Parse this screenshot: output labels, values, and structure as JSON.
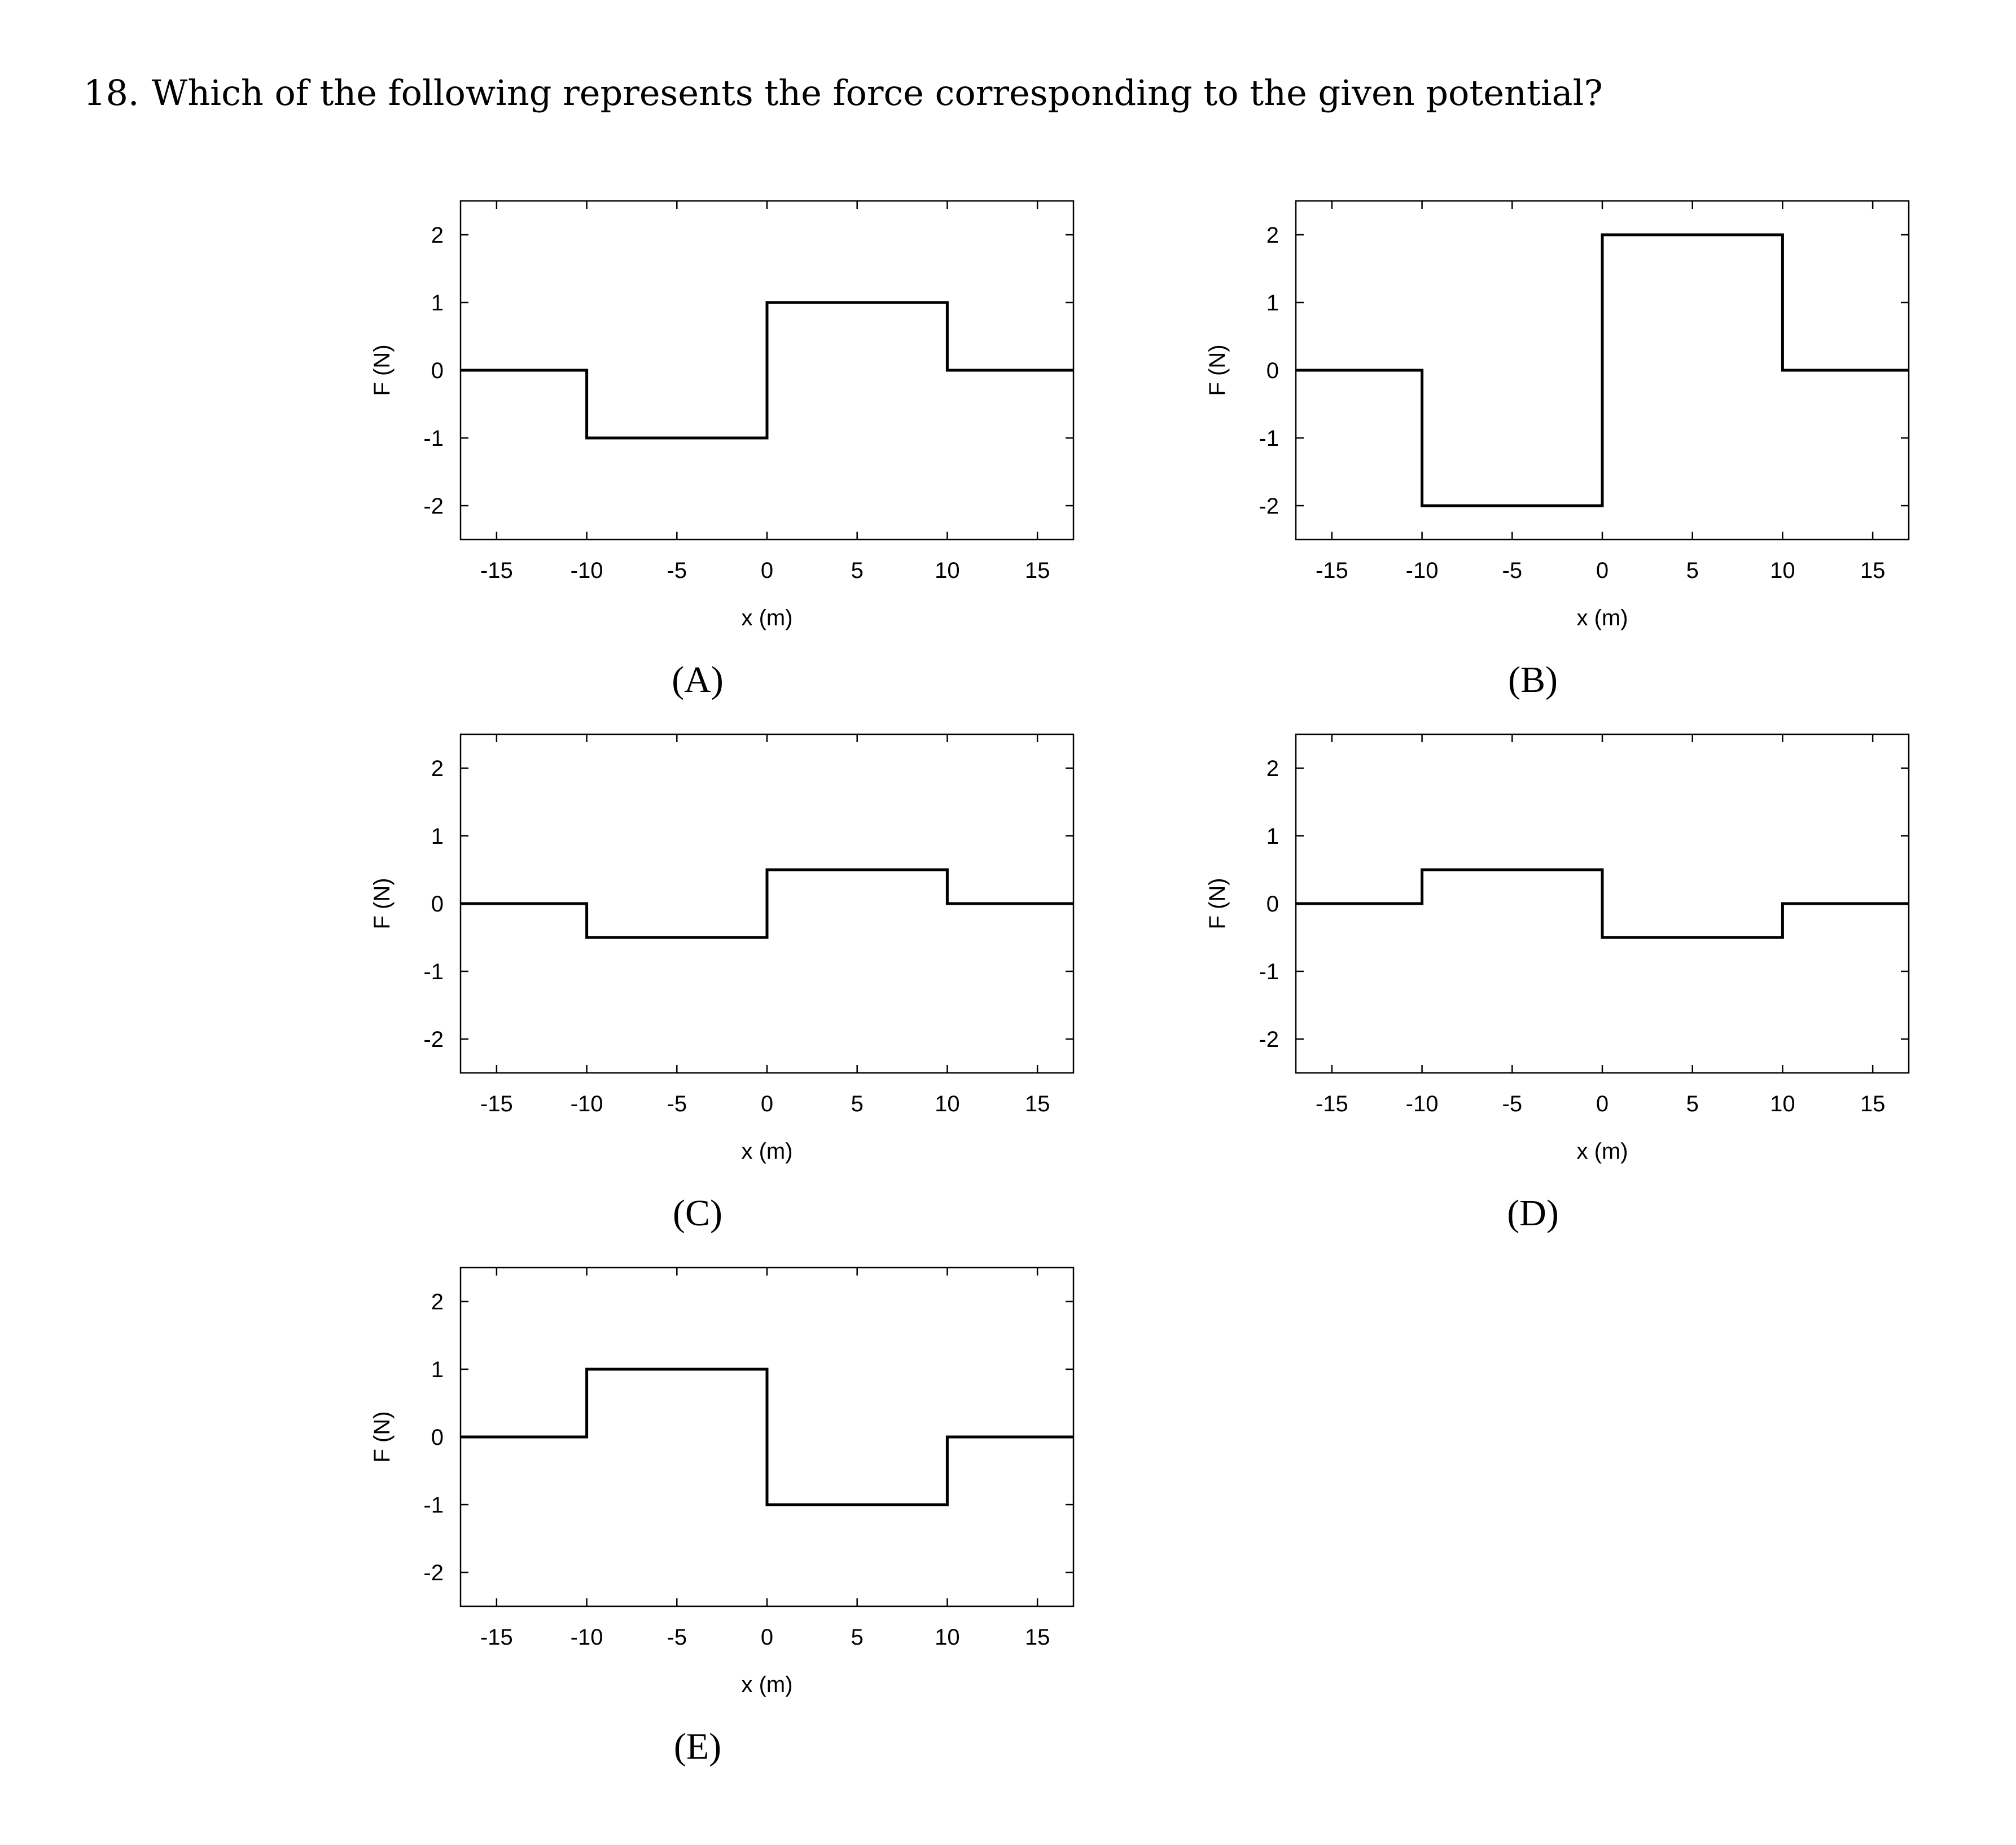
{
  "question": {
    "number": "18.",
    "text": "Which of the following represents the force corresponding to the given potential?"
  },
  "chart_data": [
    {
      "type": "line",
      "option": "(A)",
      "title": "",
      "xlabel": "x (m)",
      "ylabel": "F (N)",
      "xlim": [
        -17,
        17
      ],
      "ylim": [
        -2.5,
        2.5
      ],
      "xticks": [
        -15,
        -10,
        -5,
        0,
        5,
        10,
        15
      ],
      "yticks": [
        -2,
        -1,
        0,
        1,
        2
      ],
      "xtick_labels": [
        "-15",
        "-10",
        "-5",
        "0",
        "5",
        "10",
        "15"
      ],
      "ytick_labels": [
        "-2",
        "-1",
        "0",
        "1",
        "2"
      ],
      "grid": false,
      "legend": "none",
      "line_color": "#000000",
      "series": [
        {
          "x": [
            -17,
            -10,
            -10,
            0,
            0,
            10,
            10,
            17
          ],
          "y": [
            0,
            0,
            -1,
            -1,
            1,
            1,
            0,
            0
          ]
        }
      ]
    },
    {
      "type": "line",
      "option": "(B)",
      "title": "",
      "xlabel": "x (m)",
      "ylabel": "F (N)",
      "xlim": [
        -17,
        17
      ],
      "ylim": [
        -2.5,
        2.5
      ],
      "xticks": [
        -15,
        -10,
        -5,
        0,
        5,
        10,
        15
      ],
      "yticks": [
        -2,
        -1,
        0,
        1,
        2
      ],
      "xtick_labels": [
        "-15",
        "-10",
        "-5",
        "0",
        "5",
        "10",
        "15"
      ],
      "ytick_labels": [
        "-2",
        "-1",
        "0",
        "1",
        "2"
      ],
      "grid": false,
      "legend": "none",
      "line_color": "#000000",
      "series": [
        {
          "x": [
            -17,
            -10,
            -10,
            0,
            0,
            10,
            10,
            17
          ],
          "y": [
            0,
            0,
            -2,
            -2,
            2,
            2,
            0,
            0
          ]
        }
      ]
    },
    {
      "type": "line",
      "option": "(C)",
      "title": "",
      "xlabel": "x (m)",
      "ylabel": "F (N)",
      "xlim": [
        -17,
        17
      ],
      "ylim": [
        -2.5,
        2.5
      ],
      "xticks": [
        -15,
        -10,
        -5,
        0,
        5,
        10,
        15
      ],
      "yticks": [
        -2,
        -1,
        0,
        1,
        2
      ],
      "xtick_labels": [
        "-15",
        "-10",
        "-5",
        "0",
        "5",
        "10",
        "15"
      ],
      "ytick_labels": [
        "-2",
        "-1",
        "0",
        "1",
        "2"
      ],
      "grid": false,
      "legend": "none",
      "line_color": "#000000",
      "series": [
        {
          "x": [
            -17,
            -10,
            -10,
            0,
            0,
            10,
            10,
            17
          ],
          "y": [
            0,
            0,
            -0.5,
            -0.5,
            0.5,
            0.5,
            0,
            0
          ]
        }
      ]
    },
    {
      "type": "line",
      "option": "(D)",
      "title": "",
      "xlabel": "x (m)",
      "ylabel": "F (N)",
      "xlim": [
        -17,
        17
      ],
      "ylim": [
        -2.5,
        2.5
      ],
      "xticks": [
        -15,
        -10,
        -5,
        0,
        5,
        10,
        15
      ],
      "yticks": [
        -2,
        -1,
        0,
        1,
        2
      ],
      "xtick_labels": [
        "-15",
        "-10",
        "-5",
        "0",
        "5",
        "10",
        "15"
      ],
      "ytick_labels": [
        "-2",
        "-1",
        "0",
        "1",
        "2"
      ],
      "grid": false,
      "legend": "none",
      "line_color": "#000000",
      "series": [
        {
          "x": [
            -17,
            -10,
            -10,
            0,
            0,
            10,
            10,
            17
          ],
          "y": [
            0,
            0,
            0.5,
            0.5,
            -0.5,
            -0.5,
            0,
            0
          ]
        }
      ]
    },
    {
      "type": "line",
      "option": "(E)",
      "title": "",
      "xlabel": "x (m)",
      "ylabel": "F (N)",
      "xlim": [
        -17,
        17
      ],
      "ylim": [
        -2.5,
        2.5
      ],
      "xticks": [
        -15,
        -10,
        -5,
        0,
        5,
        10,
        15
      ],
      "yticks": [
        -2,
        -1,
        0,
        1,
        2
      ],
      "xtick_labels": [
        "-15",
        "-10",
        "-5",
        "0",
        "5",
        "10",
        "15"
      ],
      "ytick_labels": [
        "-2",
        "-1",
        "0",
        "1",
        "2"
      ],
      "grid": false,
      "legend": "none",
      "line_color": "#000000",
      "series": [
        {
          "x": [
            -17,
            -10,
            -10,
            0,
            0,
            10,
            10,
            17
          ],
          "y": [
            0,
            0,
            1,
            1,
            -1,
            -1,
            0,
            0
          ]
        }
      ]
    }
  ]
}
